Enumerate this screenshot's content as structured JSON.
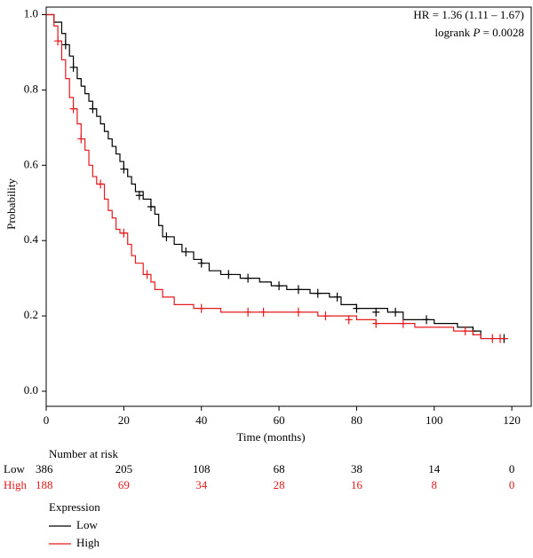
{
  "chart_data": {
    "type": "kaplan-meier",
    "xlabel": "Time (months)",
    "ylabel": "Probability",
    "xlim": [
      0,
      125
    ],
    "ylim": [
      -0.04,
      1.02
    ],
    "xticks": [
      0,
      20,
      40,
      60,
      80,
      100,
      120
    ],
    "yticks": [
      {
        "value": 0,
        "label": "0.0"
      },
      0.2,
      0.4,
      0.6,
      0.8,
      {
        "value": 1,
        "label": "1.0"
      }
    ],
    "annotations": {
      "hr": "HR = 1.36 (1.11 – 1.67)",
      "logrank": {
        "prefix": "logrank",
        "italic": "P",
        "suffix": "= 0.0028"
      }
    },
    "series": [
      {
        "name": "Low",
        "color": "#000000",
        "x": [
          0,
          2,
          4,
          5,
          6,
          7,
          8,
          9,
          10,
          11,
          12,
          13,
          14,
          15,
          16,
          17,
          18,
          19,
          20,
          21,
          22,
          23,
          25,
          27,
          28,
          29,
          30,
          33,
          35,
          38,
          40,
          42,
          45,
          50,
          55,
          58,
          62,
          68,
          73,
          76,
          80,
          88,
          92,
          100,
          106,
          110,
          112,
          119
        ],
        "values": [
          1.0,
          0.98,
          0.95,
          0.92,
          0.89,
          0.86,
          0.83,
          0.81,
          0.79,
          0.77,
          0.75,
          0.73,
          0.71,
          0.69,
          0.67,
          0.65,
          0.63,
          0.61,
          0.59,
          0.57,
          0.55,
          0.53,
          0.51,
          0.49,
          0.47,
          0.44,
          0.41,
          0.39,
          0.37,
          0.35,
          0.34,
          0.32,
          0.31,
          0.3,
          0.29,
          0.28,
          0.27,
          0.26,
          0.25,
          0.23,
          0.22,
          0.21,
          0.19,
          0.18,
          0.17,
          0.16,
          0.14,
          0.14
        ],
        "censor_x": [
          5,
          7,
          12,
          20,
          24,
          27,
          31,
          36,
          40,
          47,
          52,
          60,
          65,
          70,
          75,
          80,
          85,
          90,
          98,
          110,
          118
        ],
        "censor_values": [
          0.92,
          0.86,
          0.75,
          0.59,
          0.52,
          0.49,
          0.41,
          0.37,
          0.34,
          0.31,
          0.3,
          0.28,
          0.27,
          0.26,
          0.25,
          0.22,
          0.21,
          0.21,
          0.19,
          0.16,
          0.14
        ]
      },
      {
        "name": "High",
        "color": "#e41a1c",
        "x": [
          0,
          2,
          3,
          4,
          5,
          6,
          7,
          8,
          9,
          10,
          11,
          12,
          13,
          15,
          16,
          17,
          18,
          19,
          21,
          22,
          23,
          25,
          27,
          28,
          30,
          33,
          38,
          45,
          60,
          70,
          80,
          85,
          95,
          105,
          110,
          112,
          119
        ],
        "values": [
          1.0,
          0.97,
          0.93,
          0.88,
          0.83,
          0.78,
          0.75,
          0.71,
          0.67,
          0.64,
          0.6,
          0.57,
          0.55,
          0.51,
          0.48,
          0.46,
          0.43,
          0.42,
          0.39,
          0.36,
          0.34,
          0.31,
          0.29,
          0.27,
          0.25,
          0.23,
          0.22,
          0.21,
          0.21,
          0.2,
          0.19,
          0.18,
          0.17,
          0.16,
          0.15,
          0.14,
          0.14
        ],
        "censor_x": [
          3,
          7,
          9,
          14,
          20,
          26,
          40,
          52,
          56,
          65,
          72,
          78,
          85,
          92,
          108,
          115,
          117
        ],
        "censor_values": [
          0.93,
          0.75,
          0.67,
          0.55,
          0.42,
          0.31,
          0.22,
          0.21,
          0.21,
          0.21,
          0.2,
          0.19,
          0.18,
          0.18,
          0.16,
          0.14,
          0.14
        ]
      }
    ],
    "risk_table": {
      "title": "Number at risk",
      "counts": [
        [
          386,
          205,
          108,
          68,
          38,
          14,
          0
        ],
        [
          188,
          69,
          34,
          28,
          16,
          8,
          0
        ]
      ]
    },
    "legend": {
      "title": "Expression"
    }
  }
}
